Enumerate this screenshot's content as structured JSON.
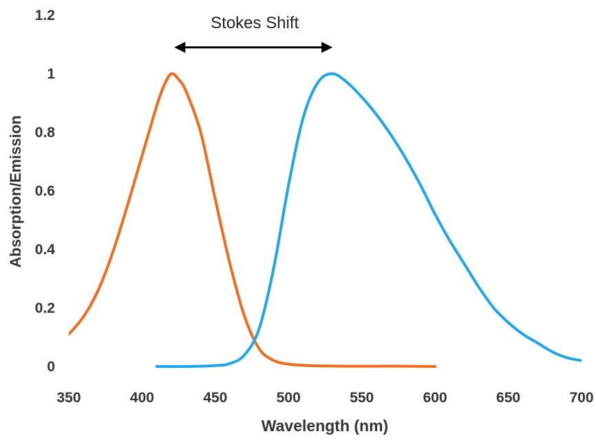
{
  "chart_data": {
    "type": "line",
    "title": "",
    "xlabel": "Wavelength (nm)",
    "ylabel": "Absorption/Emission",
    "xlim": [
      350,
      700
    ],
    "ylim": [
      0,
      1.2
    ],
    "x_ticks": [
      "350",
      "400",
      "450",
      "500",
      "550",
      "600",
      "650",
      "700"
    ],
    "y_ticks": [
      "0",
      "0.2",
      "0.4",
      "0.6",
      "0.8",
      "1",
      "1.2"
    ],
    "grid": false,
    "legend": "none",
    "annotation": {
      "text": "Stokes Shift",
      "from_x": 422,
      "to_x": 530,
      "y": 1.09
    },
    "series": [
      {
        "color": "#f26b1d",
        "x": [
          350,
          360,
          370,
          380,
          390,
          400,
          410,
          415,
          420,
          425,
          430,
          440,
          450,
          460,
          470,
          480,
          490,
          500,
          510,
          520,
          540,
          560,
          580,
          600
        ],
        "y": [
          0.11,
          0.17,
          0.26,
          0.39,
          0.55,
          0.72,
          0.89,
          0.96,
          1.0,
          0.98,
          0.94,
          0.8,
          0.57,
          0.35,
          0.17,
          0.06,
          0.02,
          0.008,
          0.004,
          0.002,
          0.001,
          0.001,
          0.001,
          0.0
        ]
      },
      {
        "color": "#1ea6ea",
        "x": [
          410,
          430,
          450,
          460,
          470,
          480,
          490,
          500,
          510,
          520,
          530,
          540,
          550,
          560,
          570,
          580,
          590,
          600,
          610,
          620,
          630,
          640,
          650,
          660,
          670,
          680,
          690,
          700
        ],
        "y": [
          0.0,
          0.0,
          0.003,
          0.01,
          0.04,
          0.13,
          0.34,
          0.62,
          0.85,
          0.97,
          1.0,
          0.97,
          0.92,
          0.86,
          0.79,
          0.71,
          0.62,
          0.52,
          0.43,
          0.35,
          0.27,
          0.2,
          0.15,
          0.11,
          0.08,
          0.05,
          0.03,
          0.02
        ]
      }
    ]
  }
}
